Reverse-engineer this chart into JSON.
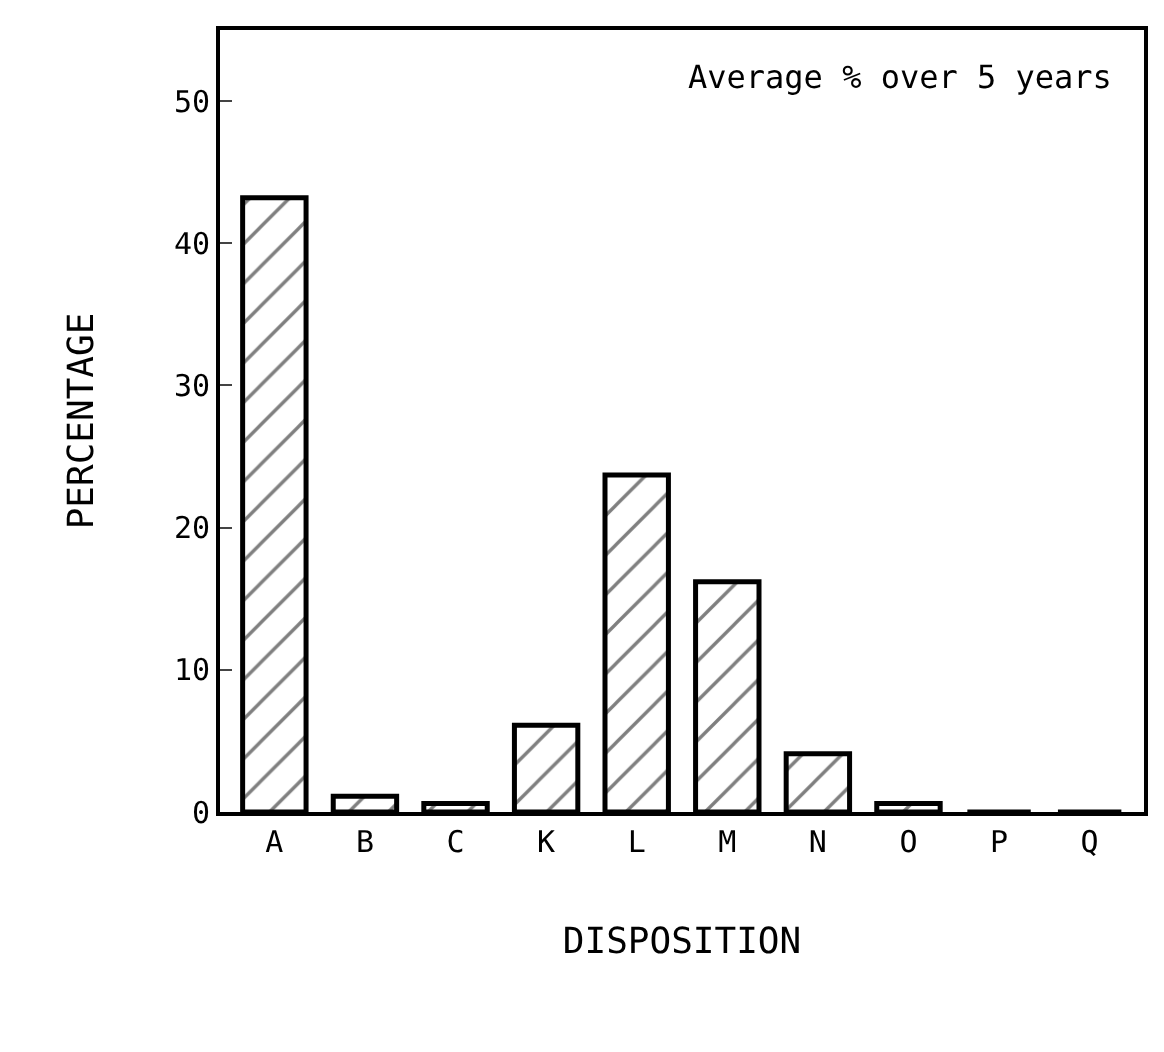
{
  "chart_data": {
    "type": "bar",
    "annotations": [
      "Average % over 5 years"
    ],
    "xlabel": "DISPOSITION",
    "ylabel": "PERCENTAGE",
    "categories": [
      "A",
      "B",
      "C",
      "K",
      "L",
      "M",
      "N",
      "O",
      "P",
      "Q"
    ],
    "values": [
      43.2,
      1.1,
      0.6,
      6.1,
      23.7,
      16.2,
      4.1,
      0.6,
      0,
      0
    ],
    "color": "#000000",
    "ylim": [
      0,
      55
    ],
    "yticks": [
      0,
      10,
      20,
      30,
      40,
      50
    ],
    "grid": false
  }
}
